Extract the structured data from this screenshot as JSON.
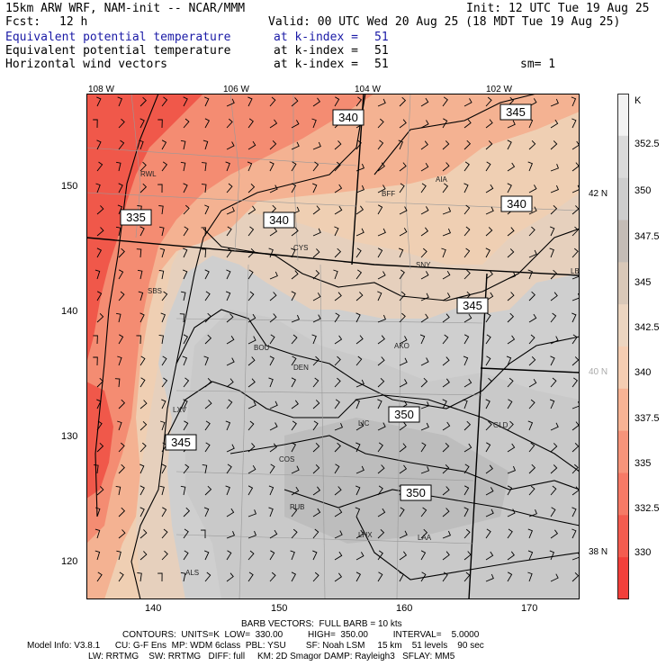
{
  "header": {
    "model": "15km ARW WRF, NAM-init -- NCAR/MMM",
    "init": "Init: 12 UTC Tue 19 Aug 25",
    "fcst_label": "Fcst:",
    "fcst_value": "12 h",
    "valid": "Valid: 00 UTC Wed 20 Aug 25 (18 MDT Tue 19 Aug 25)",
    "fields": [
      {
        "name": "Equivalent potential temperature",
        "level": "at k-index =",
        "k": "51",
        "color": "#1a1aa6"
      },
      {
        "name": "Equivalent potential temperature",
        "level": "at k-index =",
        "k": "51",
        "color": "#000000"
      },
      {
        "name": "Horizontal wind vectors",
        "level": "at k-index =",
        "k": "51",
        "color": "#000000"
      }
    ],
    "smoothing": "sm= 1"
  },
  "axes": {
    "top_lon": [
      "108 W",
      "106 W",
      "104 W",
      "102 W"
    ],
    "bottom_x": [
      "140",
      "150",
      "160",
      "170"
    ],
    "left_y": [
      "150",
      "140",
      "130",
      "120"
    ],
    "right_lat": [
      {
        "text": "42 N",
        "color": "#000000"
      },
      {
        "text": "40 N",
        "color": "#aaaaaa"
      },
      {
        "text": "38 N",
        "color": "#000000"
      }
    ]
  },
  "colorbar": {
    "unit": "K",
    "labels": [
      "352.5",
      "350",
      "347.5",
      "345",
      "342.5",
      "340",
      "337.5",
      "335",
      "332.5",
      "330"
    ],
    "colors": [
      "#f2f2f2",
      "#dadada",
      "#cdcdcd",
      "#c4bcb6",
      "#d9c8b8",
      "#ecd5c0",
      "#f5cdb2",
      "#f7b394",
      "#f6947a",
      "#f67a66",
      "#f45c4f",
      "#f23f3a"
    ]
  },
  "contours": {
    "labels": [
      "340",
      "345",
      "335",
      "340",
      "340",
      "345",
      "350",
      "345",
      "350"
    ]
  },
  "stations": [
    "RWL",
    "BFF",
    "AIA",
    "CYS",
    "SNY",
    "LBF",
    "SBS",
    "BOU",
    "AKO",
    "DEN",
    "LXV",
    "LIC",
    "GLD",
    "COS",
    "PUB",
    "LHX",
    "LAA",
    "ALS"
  ],
  "footer": {
    "barb": "BARB VECTORS:  FULL BARB = 10 kts",
    "contours": "CONTOURS:  UNITS=K  LOW=  330.00          HIGH=  350.00          INTERVAL=    5.0000",
    "model_info": "Model Info: V3.8.1      CU: G-F Ens  MP: WDM 6class  PBL: YSU        SF: Noah LSM     15 km    51 levels    90 sec",
    "physics": "LW: RRTMG    SW: RRTMG   DIFF: full     KM: 2D Smagor DAMP: Rayleigh3   SFLAY: MM5"
  }
}
